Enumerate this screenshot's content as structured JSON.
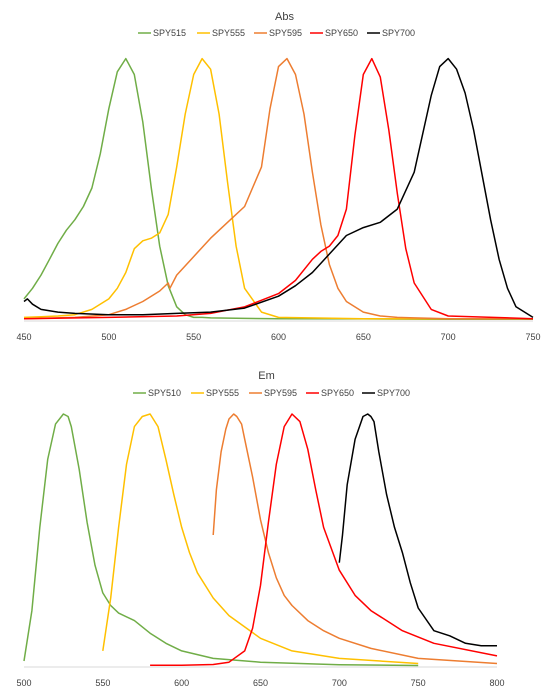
{
  "chart_data": [
    {
      "type": "line",
      "title": "Abs",
      "xlabel": "",
      "ylabel": "",
      "xlim": [
        450,
        750
      ],
      "ylim": [
        0,
        1
      ],
      "xticks": [
        450,
        500,
        550,
        600,
        650,
        700,
        750
      ],
      "grid": false,
      "legend_position": "top",
      "series": [
        {
          "name": "SPY515",
          "color": "#70AD47",
          "x": [
            450,
            455,
            460,
            465,
            470,
            475,
            480,
            485,
            490,
            495,
            500,
            505,
            510,
            515,
            520,
            525,
            530,
            535,
            540,
            545,
            550,
            555,
            560,
            580,
            600,
            650,
            690,
            700,
            720,
            750
          ],
          "y": [
            0.08,
            0.12,
            0.17,
            0.23,
            0.29,
            0.34,
            0.38,
            0.43,
            0.5,
            0.63,
            0.8,
            0.94,
            0.99,
            0.93,
            0.75,
            0.5,
            0.28,
            0.13,
            0.05,
            0.02,
            0.01,
            0.01,
            0.008,
            0.006,
            0.005,
            0.004,
            0.003,
            0.003,
            0.003,
            0.003
          ]
        },
        {
          "name": "SPY555",
          "color": "#FFC000",
          "x": [
            450,
            460,
            470,
            480,
            490,
            500,
            505,
            510,
            515,
            520,
            525,
            530,
            535,
            540,
            545,
            550,
            555,
            560,
            565,
            570,
            575,
            580,
            590,
            600,
            650,
            700,
            750
          ],
          "y": [
            0.01,
            0.012,
            0.015,
            0.02,
            0.04,
            0.08,
            0.12,
            0.18,
            0.27,
            0.3,
            0.31,
            0.33,
            0.4,
            0.58,
            0.78,
            0.93,
            0.99,
            0.95,
            0.78,
            0.52,
            0.28,
            0.12,
            0.03,
            0.01,
            0.005,
            0.004,
            0.004
          ]
        },
        {
          "name": "SPY595",
          "color": "#ED7D31",
          "x": [
            450,
            480,
            500,
            510,
            520,
            530,
            535,
            536,
            540,
            550,
            560,
            570,
            580,
            590,
            595,
            600,
            605,
            610,
            615,
            620,
            625,
            630,
            635,
            640,
            650,
            660,
            670,
            680,
            700,
            750
          ],
          "y": [
            0.005,
            0.01,
            0.02,
            0.04,
            0.07,
            0.11,
            0.14,
            0.12,
            0.17,
            0.24,
            0.31,
            0.37,
            0.43,
            0.58,
            0.8,
            0.96,
            0.99,
            0.93,
            0.78,
            0.56,
            0.36,
            0.21,
            0.12,
            0.07,
            0.03,
            0.015,
            0.01,
            0.008,
            0.005,
            0.005
          ]
        },
        {
          "name": "SPY650",
          "color": "#FF0000",
          "x": [
            450,
            500,
            540,
            560,
            580,
            600,
            610,
            620,
            625,
            630,
            635,
            640,
            645,
            650,
            655,
            660,
            665,
            670,
            675,
            680,
            690,
            700,
            750
          ],
          "y": [
            0.005,
            0.01,
            0.015,
            0.025,
            0.05,
            0.1,
            0.15,
            0.23,
            0.26,
            0.28,
            0.32,
            0.42,
            0.7,
            0.93,
            0.99,
            0.92,
            0.72,
            0.48,
            0.27,
            0.14,
            0.04,
            0.015,
            0.005
          ]
        },
        {
          "name": "SPY700",
          "color": "#000000",
          "x": [
            450,
            452,
            455,
            460,
            470,
            480,
            500,
            520,
            540,
            560,
            580,
            600,
            610,
            620,
            630,
            640,
            650,
            660,
            670,
            680,
            690,
            695,
            700,
            705,
            710,
            715,
            720,
            725,
            730,
            735,
            740,
            750
          ],
          "y": [
            0.07,
            0.08,
            0.06,
            0.04,
            0.03,
            0.025,
            0.02,
            0.02,
            0.025,
            0.03,
            0.045,
            0.09,
            0.13,
            0.18,
            0.25,
            0.32,
            0.35,
            0.37,
            0.42,
            0.56,
            0.85,
            0.96,
            0.99,
            0.95,
            0.86,
            0.72,
            0.55,
            0.38,
            0.23,
            0.12,
            0.05,
            0.01
          ]
        }
      ]
    },
    {
      "type": "line",
      "title": "Em",
      "xlabel": "",
      "ylabel": "",
      "xlim": [
        500,
        800
      ],
      "ylim": [
        0,
        1
      ],
      "xticks": [
        500,
        550,
        600,
        650,
        700,
        750,
        800
      ],
      "grid": false,
      "legend_position": "top",
      "series": [
        {
          "name": "SPY510",
          "color": "#70AD47",
          "x": [
            500,
            505,
            510,
            515,
            520,
            525,
            528,
            530,
            535,
            540,
            545,
            550,
            555,
            560,
            570,
            580,
            590,
            600,
            620,
            650,
            700,
            750
          ],
          "y": [
            0.02,
            0.22,
            0.55,
            0.82,
            0.96,
            1.0,
            0.99,
            0.95,
            0.78,
            0.57,
            0.4,
            0.29,
            0.24,
            0.21,
            0.18,
            0.13,
            0.09,
            0.06,
            0.03,
            0.015,
            0.005,
            0.002
          ]
        },
        {
          "name": "SPY555",
          "color": "#FFC000",
          "x": [
            550,
            555,
            560,
            565,
            570,
            575,
            580,
            585,
            590,
            595,
            600,
            605,
            610,
            620,
            630,
            650,
            670,
            700,
            750
          ],
          "y": [
            0.06,
            0.27,
            0.55,
            0.8,
            0.95,
            0.99,
            1.0,
            0.95,
            0.82,
            0.68,
            0.55,
            0.45,
            0.37,
            0.27,
            0.2,
            0.11,
            0.06,
            0.03,
            0.01
          ]
        },
        {
          "name": "SPY595",
          "color": "#ED7D31",
          "x": [
            620,
            622,
            625,
            628,
            630,
            633,
            635,
            638,
            640,
            645,
            650,
            655,
            660,
            665,
            670,
            680,
            690,
            700,
            720,
            750,
            800
          ],
          "y": [
            0.52,
            0.7,
            0.85,
            0.94,
            0.98,
            1.0,
            0.99,
            0.96,
            0.9,
            0.75,
            0.58,
            0.45,
            0.35,
            0.28,
            0.24,
            0.18,
            0.14,
            0.11,
            0.07,
            0.03,
            0.01
          ]
        },
        {
          "name": "SPY650",
          "color": "#FF0000",
          "x": [
            580,
            600,
            620,
            630,
            640,
            645,
            650,
            655,
            660,
            665,
            670,
            675,
            680,
            685,
            690,
            700,
            710,
            720,
            740,
            760,
            800
          ],
          "y": [
            0.003,
            0.003,
            0.006,
            0.015,
            0.06,
            0.15,
            0.32,
            0.57,
            0.8,
            0.95,
            1.0,
            0.97,
            0.86,
            0.7,
            0.55,
            0.38,
            0.28,
            0.22,
            0.14,
            0.09,
            0.04
          ]
        },
        {
          "name": "SPY700",
          "color": "#000000",
          "x": [
            700,
            702,
            705,
            710,
            715,
            718,
            720,
            722,
            725,
            730,
            735,
            740,
            745,
            750,
            760,
            770,
            780,
            790,
            800
          ],
          "y": [
            0.41,
            0.52,
            0.72,
            0.9,
            0.99,
            1.0,
            0.99,
            0.97,
            0.85,
            0.68,
            0.55,
            0.45,
            0.33,
            0.23,
            0.14,
            0.12,
            0.09,
            0.08,
            0.08
          ]
        }
      ]
    }
  ]
}
